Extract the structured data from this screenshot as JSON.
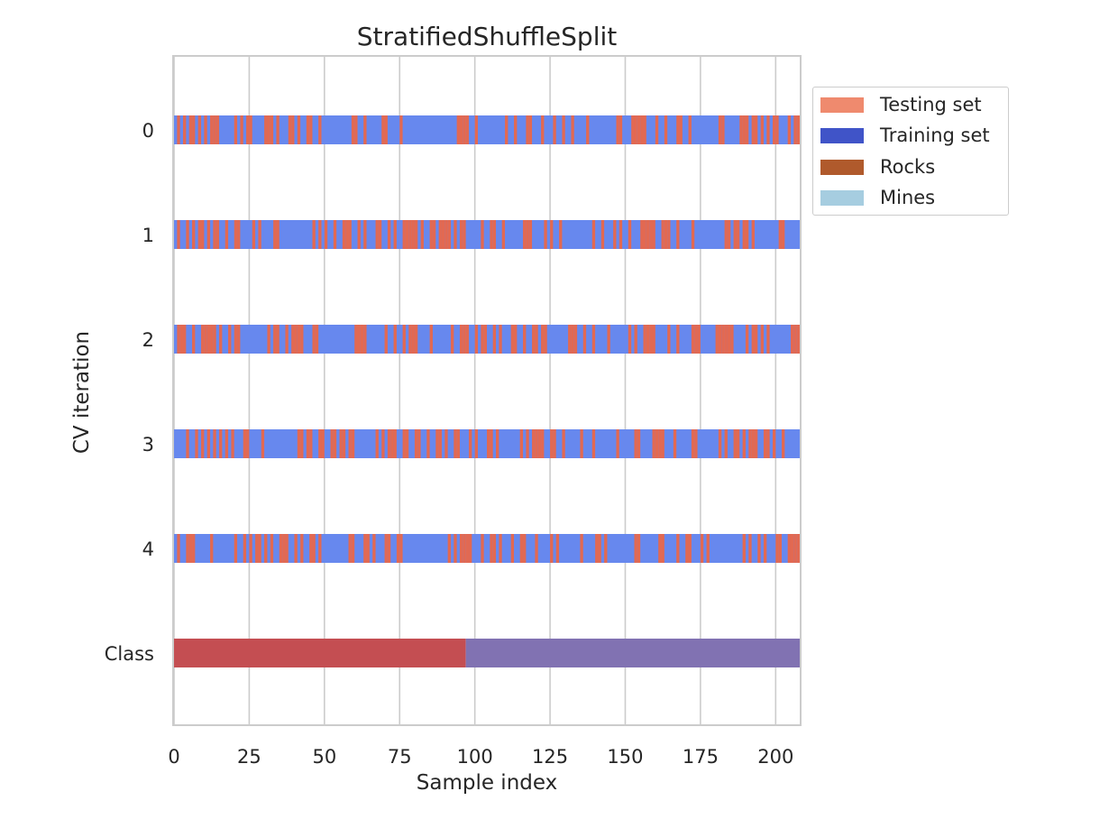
{
  "chart_data": {
    "type": "bar",
    "title": "StratifiedShuffleSplit",
    "xlabel": "Sample index",
    "ylabel": "CV iteration",
    "xlim": [
      0,
      208
    ],
    "xticks": [
      0,
      25,
      50,
      75,
      100,
      125,
      150,
      175,
      200
    ],
    "yticklabels": [
      "0",
      "1",
      "2",
      "3",
      "4",
      "Class"
    ],
    "grid": true,
    "legend_position": "outside-right",
    "legend": [
      {
        "label": "Testing set",
        "color": "#ef8a6e"
      },
      {
        "label": "Training set",
        "color": "#4054c8"
      },
      {
        "label": "Rocks",
        "color": "#b05a2c"
      },
      {
        "label": "Mines",
        "color": "#a6cde0"
      }
    ],
    "colors": {
      "train": "#6788ee",
      "test": "#e26952",
      "class_rocks": "#c44e52",
      "class_mines": "#8172b2"
    },
    "n_samples": 208,
    "cv_iterations": [
      {
        "iteration": "0",
        "test_indices": [
          1,
          3,
          5,
          6,
          8,
          10,
          12,
          13,
          14,
          20,
          22,
          24,
          25,
          30,
          31,
          32,
          34,
          38,
          39,
          41,
          44,
          45,
          48,
          59,
          60,
          63,
          69,
          70,
          75,
          94,
          95,
          96,
          97,
          100,
          110,
          113,
          117,
          118,
          122,
          126,
          129,
          132,
          137,
          147,
          148,
          152,
          153,
          154,
          155,
          156,
          160,
          163,
          167,
          168,
          171,
          181,
          182,
          188,
          189,
          190,
          192,
          193,
          195,
          197,
          199,
          200,
          204,
          206,
          207
        ]
      },
      {
        "iteration": "1",
        "test_indices": [
          1,
          4,
          6,
          8,
          9,
          11,
          13,
          14,
          17,
          20,
          21,
          26,
          28,
          33,
          34,
          46,
          48,
          50,
          53,
          56,
          57,
          58,
          61,
          63,
          67,
          68,
          71,
          73,
          76,
          77,
          78,
          79,
          80,
          82,
          85,
          86,
          88,
          89,
          90,
          91,
          93,
          95,
          96,
          102,
          105,
          106,
          109,
          116,
          117,
          118,
          123,
          125,
          128,
          139,
          142,
          146,
          148,
          151,
          155,
          156,
          157,
          158,
          159,
          162,
          163,
          164,
          167,
          172,
          183,
          184,
          186,
          187,
          189,
          190,
          192,
          201,
          202
        ]
      },
      {
        "iteration": "2",
        "test_indices": [
          1,
          2,
          3,
          6,
          9,
          10,
          11,
          12,
          13,
          15,
          18,
          20,
          21,
          31,
          33,
          34,
          37,
          39,
          40,
          41,
          42,
          46,
          47,
          60,
          61,
          62,
          63,
          70,
          73,
          76,
          78,
          79,
          80,
          85,
          92,
          95,
          96,
          97,
          100,
          102,
          103,
          106,
          108,
          112,
          113,
          116,
          119,
          120,
          122,
          123,
          131,
          132,
          133,
          136,
          139,
          144,
          151,
          153,
          156,
          157,
          158,
          159,
          164,
          167,
          172,
          173,
          174,
          180,
          181,
          182,
          183,
          184,
          185,
          190,
          192,
          193,
          195,
          197,
          205,
          206,
          207
        ]
      },
      {
        "iteration": "3",
        "test_indices": [
          4,
          7,
          9,
          11,
          13,
          15,
          17,
          19,
          23,
          24,
          29,
          41,
          42,
          44,
          45,
          48,
          49,
          52,
          53,
          55,
          56,
          58,
          59,
          67,
          69,
          71,
          72,
          73,
          76,
          77,
          80,
          81,
          84,
          87,
          88,
          90,
          93,
          94,
          98,
          100,
          104,
          105,
          107,
          115,
          117,
          119,
          120,
          121,
          122,
          125,
          126,
          129,
          135,
          139,
          147,
          153,
          154,
          159,
          160,
          161,
          162,
          166,
          172,
          173,
          181,
          183,
          186,
          187,
          189,
          191,
          192,
          193,
          196,
          197,
          199,
          202
        ]
      },
      {
        "iteration": "4",
        "test_indices": [
          1,
          4,
          5,
          6,
          12,
          20,
          23,
          25,
          27,
          28,
          30,
          32,
          35,
          36,
          37,
          40,
          42,
          45,
          46,
          48,
          58,
          59,
          63,
          64,
          66,
          70,
          71,
          74,
          75,
          91,
          93,
          95,
          96,
          97,
          98,
          102,
          105,
          106,
          108,
          112,
          115,
          116,
          120,
          125,
          127,
          135,
          140,
          141,
          143,
          153,
          154,
          161,
          162,
          167,
          170,
          171,
          175,
          177,
          189,
          191,
          194,
          196,
          200,
          201,
          204,
          205,
          206,
          207
        ]
      }
    ],
    "class_row": {
      "label": "Class",
      "rocks_range": [
        0,
        97
      ],
      "mines_range": [
        97,
        208
      ]
    }
  }
}
